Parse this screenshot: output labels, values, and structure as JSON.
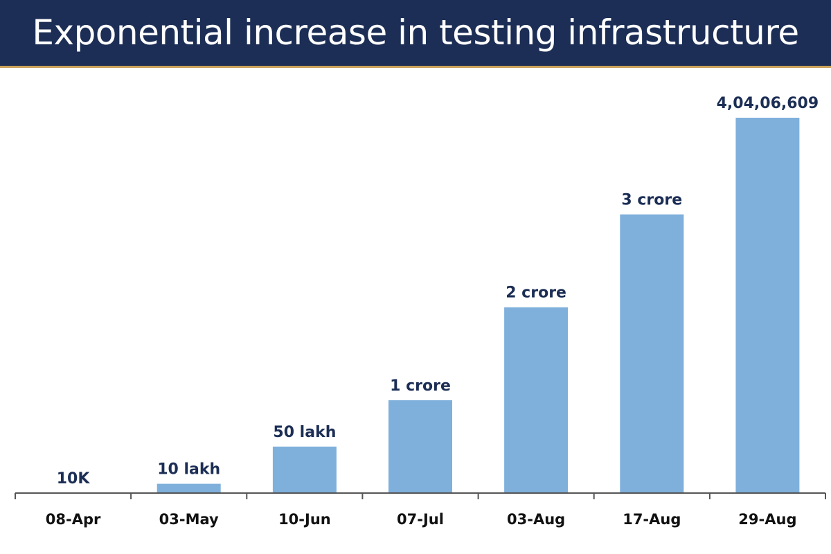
{
  "header": {
    "title": "Exponential increase in testing infrastructure"
  },
  "colors": {
    "title_bar": "#1c2e55",
    "bar": "#7fb0dc",
    "label": "#1c2e55"
  },
  "chart_data": {
    "type": "bar",
    "title": "Exponential increase in testing infrastructure",
    "xlabel": "",
    "ylabel": "",
    "grid": false,
    "legend": "none",
    "categories": [
      "08-Apr",
      "03-May",
      "10-Jun",
      "07-Jul",
      "03-Aug",
      "17-Aug",
      "29-Aug"
    ],
    "values": [
      10000,
      1000000,
      5000000,
      10000000,
      20000000,
      30000000,
      40406609
    ],
    "data_labels": [
      "10K",
      "10 lakh",
      "50 lakh",
      "1 crore",
      "2 crore",
      "3 crore",
      "4,04,06,609"
    ],
    "ylim": [
      0,
      40406609
    ]
  }
}
